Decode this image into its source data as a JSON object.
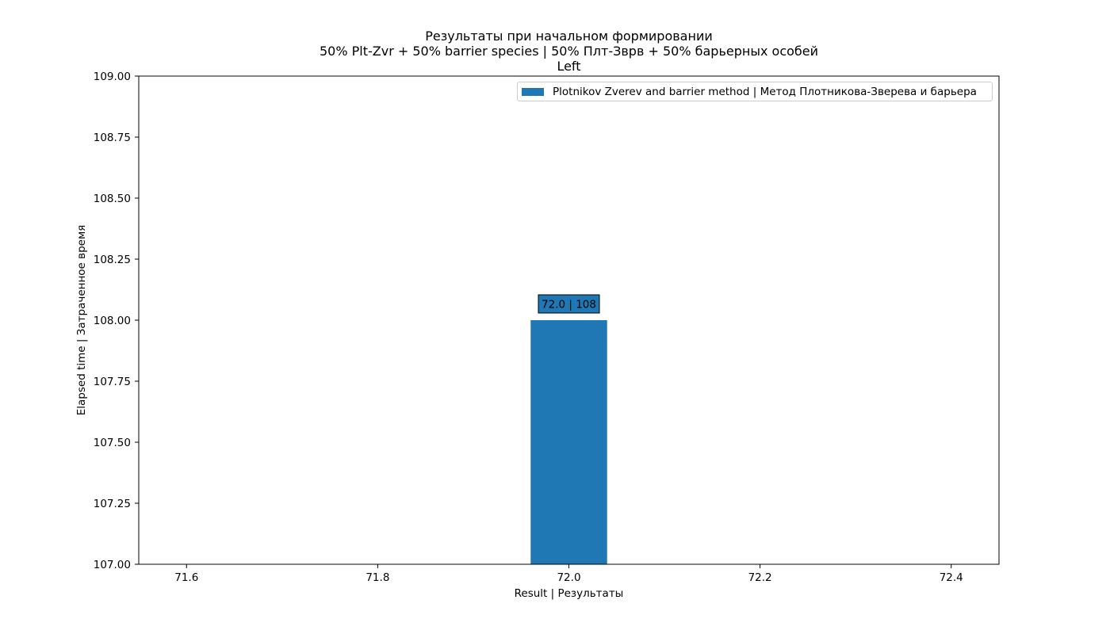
{
  "chart_data": {
    "type": "bar",
    "title_lines": [
      "Результаты при начальном формировании",
      "50% Plt-Zvr + 50% barrier species | 50% Плт-Зврв + 50% барьерных особей",
      "Left"
    ],
    "xlabel": "Result | Результаты",
    "ylabel": "Elapsed time | Затраченное время",
    "xlim": [
      71.55,
      72.45
    ],
    "ylim": [
      107.0,
      109.0
    ],
    "x_ticks": [
      71.6,
      71.8,
      72.0,
      72.2,
      72.4
    ],
    "x_tick_labels": [
      "71.6",
      "71.8",
      "72.0",
      "72.2",
      "72.4"
    ],
    "y_ticks": [
      107.0,
      107.25,
      107.5,
      107.75,
      108.0,
      108.25,
      108.5,
      108.75,
      109.0
    ],
    "y_tick_labels": [
      "107.00",
      "107.25",
      "107.50",
      "107.75",
      "108.00",
      "108.25",
      "108.50",
      "108.75",
      "109.00"
    ],
    "series": [
      {
        "name": "Plotnikov Zverev and barrier method | Метод Плотникова-Зверева и барьера",
        "color": "#1f77b4",
        "bars": [
          {
            "x": 72.0,
            "width": 0.08,
            "value": 108,
            "label": "72.0 | 108"
          }
        ]
      }
    ],
    "legend_position": "upper-right",
    "grid": false
  }
}
